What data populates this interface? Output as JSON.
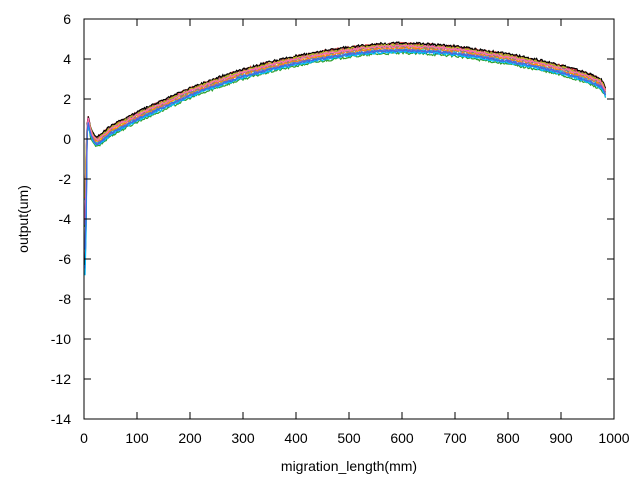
{
  "chart_data": {
    "type": "line",
    "title": "",
    "xlabel": "migration_length(mm)",
    "ylabel": "output(um)",
    "xlim": [
      0,
      1000
    ],
    "ylim": [
      -14,
      6
    ],
    "xticks": [
      0,
      100,
      200,
      300,
      400,
      500,
      600,
      700,
      800,
      900,
      1000
    ],
    "yticks": [
      -14,
      -12,
      -10,
      -8,
      -6,
      -4,
      -2,
      0,
      2,
      4,
      6
    ],
    "grid": false,
    "legend": "none",
    "base_curve": {
      "x": [
        2,
        5,
        8,
        12,
        18,
        25,
        35,
        50,
        75,
        100,
        150,
        200,
        250,
        300,
        350,
        400,
        450,
        500,
        550,
        600,
        650,
        700,
        750,
        800,
        850,
        900,
        950,
        975,
        982,
        985
      ],
      "y": [
        -3.0,
        0.3,
        0.9,
        0.4,
        0.0,
        -0.15,
        0.05,
        0.4,
        0.75,
        1.1,
        1.7,
        2.3,
        2.8,
        3.25,
        3.6,
        3.9,
        4.15,
        4.35,
        4.5,
        4.55,
        4.5,
        4.4,
        4.2,
        4.0,
        3.75,
        3.45,
        3.05,
        2.75,
        2.45,
        2.2
      ]
    },
    "series": [
      {
        "color": "#d62728",
        "offset": 0.22
      },
      {
        "color": "#2ca02c",
        "offset": -0.25
      },
      {
        "color": "#1f77b4",
        "offset": -0.15
      },
      {
        "color": "#ff00ff",
        "offset": 0.12
      },
      {
        "color": "#17becf",
        "offset": -0.05
      },
      {
        "color": "#8c564b",
        "offset": 0.18
      },
      {
        "color": "#e6c000",
        "offset": 0.05
      },
      {
        "color": "#000000",
        "offset": 0.25
      },
      {
        "color": "#ff7f0e",
        "offset": 0.0
      },
      {
        "color": "#9467bd",
        "offset": -0.1
      },
      {
        "color": "#7f7f7f",
        "offset": 0.08
      },
      {
        "color": "#00bfff",
        "offset": -0.18
      },
      {
        "color": "#bcbd22",
        "offset": 0.15
      },
      {
        "color": "#ff69b4",
        "offset": 0.1
      },
      {
        "color": "#4169e1",
        "offset": -0.12
      }
    ]
  }
}
